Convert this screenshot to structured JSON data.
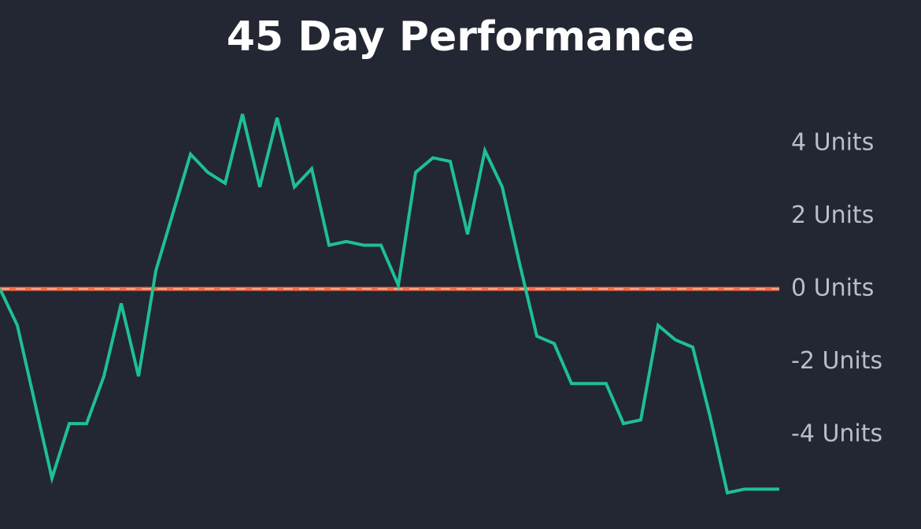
{
  "chart_data": {
    "type": "line",
    "title": "45 Day Performance",
    "categories": [
      null,
      null,
      null,
      null,
      null,
      null,
      null,
      null,
      null,
      null,
      null,
      null,
      null,
      null,
      null,
      null,
      null,
      null,
      null,
      null,
      null,
      null,
      null,
      null,
      null,
      null,
      null,
      null,
      null,
      null,
      null,
      null,
      null,
      null,
      null,
      null,
      null,
      null,
      null,
      null,
      null,
      null,
      null,
      null,
      null,
      null
    ],
    "values": [
      0,
      -1.0,
      -3.1,
      -5.2,
      -3.7,
      -3.7,
      -2.4,
      -0.4,
      -2.4,
      0.5,
      2.1,
      3.7,
      3.2,
      2.9,
      4.8,
      2.8,
      4.7,
      2.8,
      3.3,
      1.2,
      1.3,
      1.2,
      1.2,
      0.1,
      3.2,
      3.6,
      3.5,
      1.5,
      3.8,
      2.8,
      0.7,
      -1.3,
      -1.5,
      -2.6,
      -2.6,
      -2.6,
      -3.7,
      -3.6,
      -1.0,
      -1.4,
      -1.6,
      -3.5,
      -5.6,
      -5.5,
      -5.5,
      -5.5
    ],
    "color": "#1fbf95",
    "zero_line_color": "#f26b43",
    "ylim": [
      -6.5,
      5.5
    ],
    "yticks": [
      {
        "value": -4,
        "label": "-4 Units"
      },
      {
        "value": -2,
        "label": "-2 Units"
      },
      {
        "value": 0,
        "label": "0 Units"
      },
      {
        "value": 2,
        "label": "2 Units"
      },
      {
        "value": 4,
        "label": "4 Units"
      }
    ]
  }
}
